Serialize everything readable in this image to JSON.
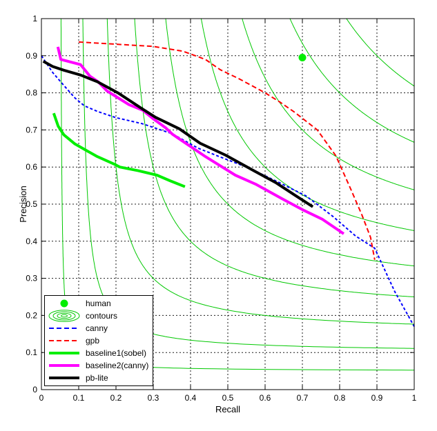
{
  "chart_data": {
    "type": "line",
    "title": "",
    "xlabel": "Recall",
    "ylabel": "Precision",
    "xlim": [
      0,
      1
    ],
    "ylim": [
      0,
      1
    ],
    "grid": true,
    "x_tick_labels": [
      "0",
      "0.1",
      "0.2",
      "0.3",
      "0.4",
      "0.5",
      "0.6",
      "0.7",
      "0.8",
      "0.9",
      "1"
    ],
    "y_tick_labels": [
      "0",
      "0.1",
      "0.2",
      "0.3",
      "0.4",
      "0.5",
      "0.6",
      "0.7",
      "0.8",
      "0.9",
      "1"
    ],
    "contours": {
      "name": "contours",
      "curve": "iso-f1",
      "levels": [
        0.1,
        0.2,
        0.3,
        0.4,
        0.5,
        0.6,
        0.7,
        0.8,
        0.9
      ],
      "color": "#00C800"
    },
    "point_series": [
      {
        "name": "human",
        "x": 0.7,
        "y": 0.895,
        "color": "#00EE00",
        "radius": 5.5
      }
    ],
    "series": [
      {
        "name": "canny",
        "color": "#0000FF",
        "style": "dashed",
        "dash": "4 3",
        "width": 2,
        "points": [
          [
            0,
            0.9
          ],
          [
            0.03,
            0.855
          ],
          [
            0.06,
            0.82
          ],
          [
            0.09,
            0.786
          ],
          [
            0.115,
            0.765
          ],
          [
            0.15,
            0.75
          ],
          [
            0.2,
            0.733
          ],
          [
            0.27,
            0.717
          ],
          [
            0.35,
            0.69
          ],
          [
            0.42,
            0.651
          ],
          [
            0.48,
            0.627
          ],
          [
            0.56,
            0.596
          ],
          [
            0.64,
            0.557
          ],
          [
            0.71,
            0.522
          ],
          [
            0.783,
            0.466
          ],
          [
            0.843,
            0.414
          ],
          [
            0.894,
            0.381
          ],
          [
            0.948,
            0.264
          ],
          [
            1.0,
            0.17
          ]
        ]
      },
      {
        "name": "gpb",
        "color": "#FF0000",
        "style": "dashed",
        "dash": "7 4",
        "width": 2,
        "points": [
          [
            0.1,
            0.937
          ],
          [
            0.2,
            0.931
          ],
          [
            0.3,
            0.925
          ],
          [
            0.38,
            0.912
          ],
          [
            0.44,
            0.89
          ],
          [
            0.48,
            0.862
          ],
          [
            0.53,
            0.838
          ],
          [
            0.6,
            0.8
          ],
          [
            0.64,
            0.775
          ],
          [
            0.68,
            0.747
          ],
          [
            0.74,
            0.7
          ],
          [
            0.79,
            0.63
          ],
          [
            0.83,
            0.54
          ],
          [
            0.86,
            0.47
          ],
          [
            0.883,
            0.41
          ],
          [
            0.894,
            0.35
          ]
        ]
      },
      {
        "name": "baseline1(sobel)",
        "color": "#00EE00",
        "style": "solid",
        "dash": "",
        "width": 4,
        "points": [
          [
            0.033,
            0.745
          ],
          [
            0.045,
            0.71
          ],
          [
            0.06,
            0.687
          ],
          [
            0.09,
            0.662
          ],
          [
            0.12,
            0.645
          ],
          [
            0.15,
            0.628
          ],
          [
            0.195,
            0.608
          ],
          [
            0.21,
            0.6
          ],
          [
            0.26,
            0.59
          ],
          [
            0.31,
            0.578
          ],
          [
            0.345,
            0.563
          ],
          [
            0.385,
            0.547
          ]
        ]
      },
      {
        "name": "baseline2(canny)",
        "color": "#FF00FF",
        "style": "solid",
        "dash": "",
        "width": 4,
        "points": [
          [
            0.044,
            0.924
          ],
          [
            0.052,
            0.89
          ],
          [
            0.105,
            0.876
          ],
          [
            0.13,
            0.845
          ],
          [
            0.152,
            0.83
          ],
          [
            0.176,
            0.805
          ],
          [
            0.2,
            0.79
          ],
          [
            0.235,
            0.768
          ],
          [
            0.272,
            0.753
          ],
          [
            0.3,
            0.73
          ],
          [
            0.333,
            0.706
          ],
          [
            0.352,
            0.688
          ],
          [
            0.44,
            0.628
          ],
          [
            0.52,
            0.578
          ],
          [
            0.574,
            0.554
          ],
          [
            0.65,
            0.512
          ],
          [
            0.704,
            0.483
          ],
          [
            0.754,
            0.459
          ],
          [
            0.811,
            0.42
          ]
        ]
      },
      {
        "name": "pb-lite",
        "color": "#000000",
        "style": "solid",
        "dash": "",
        "width": 4,
        "points": [
          [
            0.005,
            0.885
          ],
          [
            0.03,
            0.871
          ],
          [
            0.06,
            0.861
          ],
          [
            0.105,
            0.848
          ],
          [
            0.15,
            0.83
          ],
          [
            0.205,
            0.8
          ],
          [
            0.27,
            0.757
          ],
          [
            0.306,
            0.734
          ],
          [
            0.37,
            0.703
          ],
          [
            0.426,
            0.664
          ],
          [
            0.494,
            0.632
          ],
          [
            0.57,
            0.59
          ],
          [
            0.63,
            0.557
          ],
          [
            0.68,
            0.524
          ],
          [
            0.728,
            0.493
          ]
        ]
      }
    ],
    "legend": {
      "position": "lower-left",
      "items": [
        {
          "label": "human",
          "marker": "dot",
          "color": "#00EE00"
        },
        {
          "label": "contours",
          "marker": "rings",
          "color": "#00C800"
        },
        {
          "label": "canny",
          "marker": "dashed-line",
          "color": "#0000FF"
        },
        {
          "label": "gpb",
          "marker": "dashed-line",
          "color": "#FF0000"
        },
        {
          "label": "baseline1(sobel)",
          "marker": "thick-line",
          "color": "#00EE00"
        },
        {
          "label": "baseline2(canny)",
          "marker": "thick-line",
          "color": "#FF00FF"
        },
        {
          "label": "pb-lite",
          "marker": "thick-line",
          "color": "#000000"
        }
      ]
    }
  }
}
